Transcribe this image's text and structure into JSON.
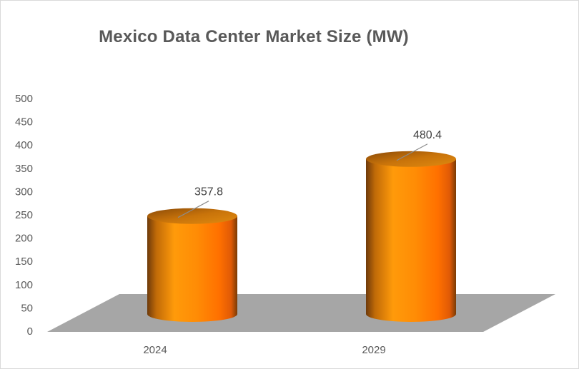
{
  "chart_data": {
    "type": "bar",
    "title": "Mexico Data Center Market Size (MW)",
    "categories": [
      "2024",
      "2029"
    ],
    "values": [
      357.8,
      480.4
    ],
    "data_labels": [
      "357.8",
      "480.4"
    ],
    "y_ticks": [
      "0",
      "50",
      "100",
      "150",
      "200",
      "250",
      "300",
      "350",
      "400",
      "450",
      "500"
    ],
    "ylim": [
      0,
      500
    ],
    "xlabel": "",
    "ylabel": "",
    "grid": false,
    "legend": "none",
    "style": "3d-cylinder",
    "colors": {
      "bar_light": "#ff9a0a",
      "bar_mid": "#ff7f00",
      "bar_dark": "#7a3b05",
      "floor": "#a6a6a6",
      "text": "#595959"
    }
  }
}
